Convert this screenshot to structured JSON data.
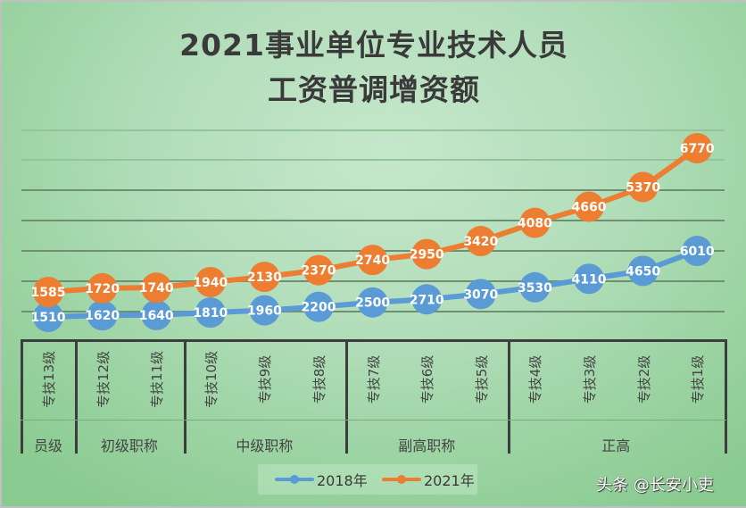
{
  "title": {
    "line1": "2021事业单位专业技术人员",
    "line2": "工资普调增资额"
  },
  "colors": {
    "series_2018": "#5b9bd5",
    "series_2021": "#ed7d31",
    "background_center": "#c5e7cb",
    "background_edge": "#88ca8f",
    "axis": "#3d3d3d",
    "gridline": "#6e8f70"
  },
  "chart_data": {
    "type": "line",
    "title": "2021事业单位专业技术人员 工资普调增资额",
    "xlabel": "",
    "ylabel": "",
    "categories": [
      "专技13级",
      "专技12级",
      "专技11级",
      "专技10级",
      "专技9级",
      "专技8级",
      "专技7级",
      "专技6级",
      "专技5级",
      "专技4级",
      "专技3级",
      "专技2级",
      "专技1级"
    ],
    "category_groups": [
      {
        "label": "员级",
        "span": 1
      },
      {
        "label": "初级职称",
        "span": 2
      },
      {
        "label": "中级职称",
        "span": 3
      },
      {
        "label": "副高职称",
        "span": 3
      },
      {
        "label": "正高",
        "span": 4
      }
    ],
    "series": [
      {
        "name": "2018年",
        "color": "#5b9bd5",
        "values": [
          1510,
          1620,
          1640,
          1810,
          1960,
          2200,
          2500,
          2710,
          3070,
          3530,
          4110,
          4650,
          6010
        ]
      },
      {
        "name": "2021年",
        "color": "#ed7d31",
        "values": [
          1585,
          1720,
          1740,
          1940,
          2130,
          2370,
          2740,
          2950,
          3420,
          4080,
          4660,
          5370,
          6770
        ]
      }
    ],
    "data_labels": true,
    "grid": true,
    "axis_tick_labels_visible": false,
    "legend_position": "bottom"
  },
  "legend": {
    "items": [
      {
        "label": "2018年",
        "color": "#5b9bd5"
      },
      {
        "label": "2021年",
        "color": "#ed7d31"
      }
    ]
  },
  "watermark": "头条 @长安小吏"
}
